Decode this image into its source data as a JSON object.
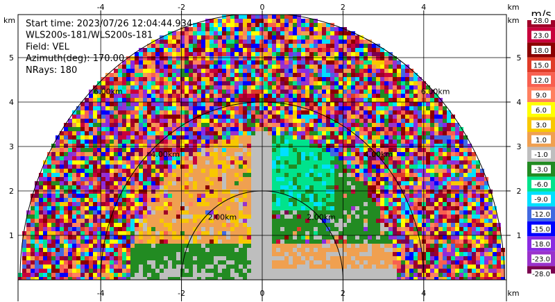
{
  "chart_data": {
    "type": "heatmap",
    "subtype": "radar-rhi-sector",
    "info_lines": [
      "Start time: 2023/07/26 12:04:44.934",
      "WLS200s-181/WLS200s-181",
      "Field: VEL",
      "Azimuth(deg): 170.00",
      "NRays: 180"
    ],
    "x_unit": "km",
    "y_unit": "km",
    "xlim": [
      -6.0,
      6.0
    ],
    "ylim": [
      0,
      6.0
    ],
    "x_ticks": [
      -4,
      -2,
      0,
      2,
      4
    ],
    "y_ticks": [
      1,
      2,
      3,
      4,
      5
    ],
    "grid": true,
    "range_rings": [
      {
        "radius_km": 2,
        "label": "2.00km"
      },
      {
        "radius_km": 4,
        "label": "4.00km"
      },
      {
        "radius_km": 6,
        "label": "6.00km"
      }
    ],
    "max_range_km": 6.0,
    "colorbar": {
      "title": "m/s",
      "ticks": [
        "28.0",
        "23.0",
        "18.0",
        "15.0",
        "12.0",
        "9.0",
        "6.0",
        "3.0",
        "1.0",
        "-1.0",
        "-3.0",
        "-6.0",
        "-9.0",
        "-12.0",
        "-15.0",
        "-18.0",
        "-23.0",
        "-28.0"
      ],
      "colors": [
        "#a00028",
        "#c8003c",
        "#8b0000",
        "#e03c28",
        "#f86050",
        "#ff8060",
        "#ffff00",
        "#f8c800",
        "#f0a050",
        "#bebebe",
        "#228b22",
        "#00e38c",
        "#00e0ff",
        "#4169e1",
        "#0000ff",
        "#8a2be2",
        "#9932cc",
        "#7b0050"
      ]
    }
  }
}
